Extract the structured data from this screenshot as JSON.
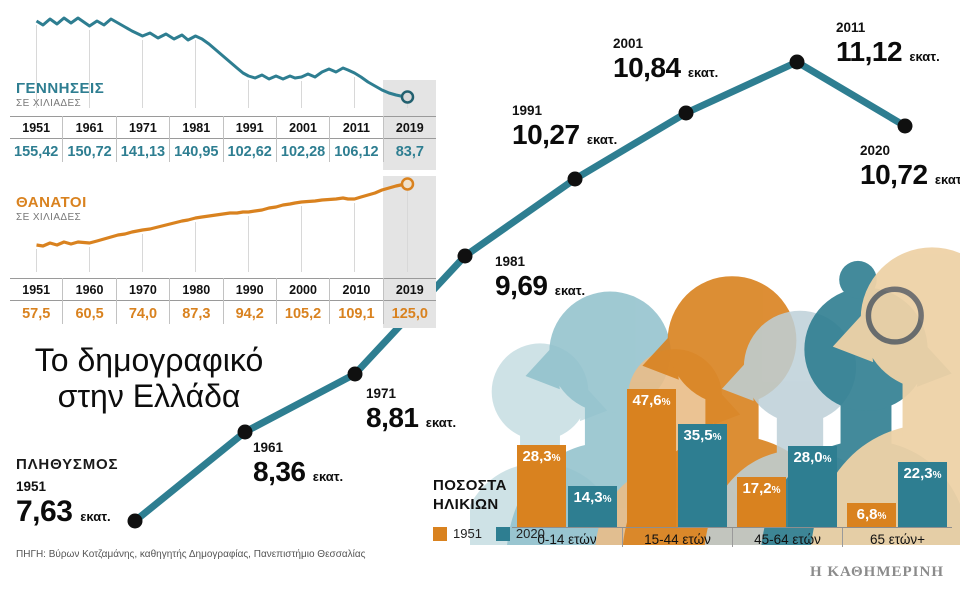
{
  "title": {
    "line1": "Το δημογραφικό",
    "line2": "στην Ελλάδα"
  },
  "source": "ΠΗΓΗ: Βύρων Κοτζαμάνης, καθηγητής Δημογραφίας, Πανεπιστήμιο Θεσσαλίας",
  "brand": "Η ΚΑΘΗΜΕΡΙΝΗ",
  "colors": {
    "teal": "#2e7e91",
    "orange": "#d9821f",
    "point": "#101010",
    "highlight": "#e4e4e4"
  },
  "births": {
    "label": "ΓΕΝΝΗΣΕΙΣ",
    "sublabel": "ΣΕ ΧΙΛΙΑΔΕΣ",
    "years": [
      "1951",
      "1961",
      "1971",
      "1981",
      "1991",
      "2001",
      "2011",
      "2019"
    ],
    "values": [
      "155,42",
      "150,72",
      "141,13",
      "140,95",
      "102,62",
      "102,28",
      "106,12",
      "83,7"
    ]
  },
  "deaths": {
    "label": "ΘΑΝΑΤΟΙ",
    "sublabel": "ΣΕ ΧΙΛΙΑΔΕΣ",
    "years": [
      "1951",
      "1960",
      "1970",
      "1980",
      "1990",
      "2000",
      "2010",
      "2019"
    ],
    "values": [
      "57,5",
      "60,5",
      "74,0",
      "87,3",
      "94,2",
      "105,2",
      "109,1",
      "125,0"
    ]
  },
  "population": {
    "label": "ΠΛΗΘΥΣΜΟΣ",
    "unit": "εκατ.",
    "points": [
      {
        "year": "1951",
        "value": "7,63"
      },
      {
        "year": "1961",
        "value": "8,36"
      },
      {
        "year": "1971",
        "value": "8,81"
      },
      {
        "year": "1981",
        "value": "9,69"
      },
      {
        "year": "1991",
        "value": "10,27"
      },
      {
        "year": "2001",
        "value": "10,84"
      },
      {
        "year": "2011",
        "value": "11,12"
      },
      {
        "year": "2020",
        "value": "10,72"
      }
    ]
  },
  "ages": {
    "label_line1": "ΠΟΣΟΣΤΑ",
    "label_line2": "ΗΛΙΚΙΩΝ",
    "percent_sign": "%",
    "legend": [
      {
        "name": "1951",
        "color": "#d9821f"
      },
      {
        "name": "2020",
        "color": "#2e7e91"
      }
    ],
    "categories": [
      "0-14 ετών",
      "15-44 ετών",
      "45-64 ετών",
      "65 ετών+"
    ],
    "series": [
      {
        "name": "1951",
        "labels": [
          "28,3",
          "47,6",
          "17,2",
          "6,8"
        ],
        "values": [
          28.3,
          47.6,
          17.2,
          6.8
        ]
      },
      {
        "name": "2020",
        "labels": [
          "14,3",
          "35,5",
          "28,0",
          "22,3"
        ],
        "values": [
          14.3,
          35.5,
          28.0,
          22.3
        ]
      }
    ]
  },
  "chart_data": [
    {
      "type": "line",
      "title": "ΓΕΝΝΗΣΕΙΣ ΣΕ ΧΙΛΙΑΔΕΣ",
      "x": [
        1951,
        1961,
        1971,
        1981,
        1991,
        2001,
        2011,
        2019
      ],
      "values": [
        155.42,
        150.72,
        141.13,
        140.95,
        102.62,
        102.28,
        106.12,
        83.7
      ],
      "ylabel": "χιλιάδες",
      "color": "#2e7e91",
      "grid": false,
      "legend_position": "none"
    },
    {
      "type": "line",
      "title": "ΘΑΝΑΤΟΙ ΣΕ ΧΙΛΙΑΔΕΣ",
      "x": [
        1951,
        1960,
        1970,
        1980,
        1990,
        2000,
        2010,
        2019
      ],
      "values": [
        57.5,
        60.5,
        74.0,
        87.3,
        94.2,
        105.2,
        109.1,
        125.0
      ],
      "ylabel": "χιλιάδες",
      "color": "#d9821f",
      "grid": false,
      "legend_position": "none"
    },
    {
      "type": "line",
      "title": "ΠΛΗΘΥΣΜΟΣ (εκατ.)",
      "x": [
        1951,
        1961,
        1971,
        1981,
        1991,
        2001,
        2011,
        2020
      ],
      "values": [
        7.63,
        8.36,
        8.81,
        9.69,
        10.27,
        10.84,
        11.12,
        10.72
      ],
      "ylabel": "εκατ.",
      "color": "#2e7e91",
      "markers": true,
      "grid": false,
      "legend_position": "none"
    },
    {
      "type": "bar",
      "title": "ΠΟΣΟΣΤΑ ΗΛΙΚΙΩΝ",
      "categories": [
        "0-14 ετών",
        "15-44 ετών",
        "45-64 ετών",
        "65 ετών+"
      ],
      "series": [
        {
          "name": "1951",
          "values": [
            28.3,
            47.6,
            17.2,
            6.8
          ],
          "color": "#d9821f"
        },
        {
          "name": "2020",
          "values": [
            14.3,
            35.5,
            28.0,
            22.3
          ],
          "color": "#2e7e91"
        }
      ],
      "unit": "%",
      "ylim": [
        0,
        50
      ],
      "grid": false,
      "legend_position": "left"
    }
  ]
}
